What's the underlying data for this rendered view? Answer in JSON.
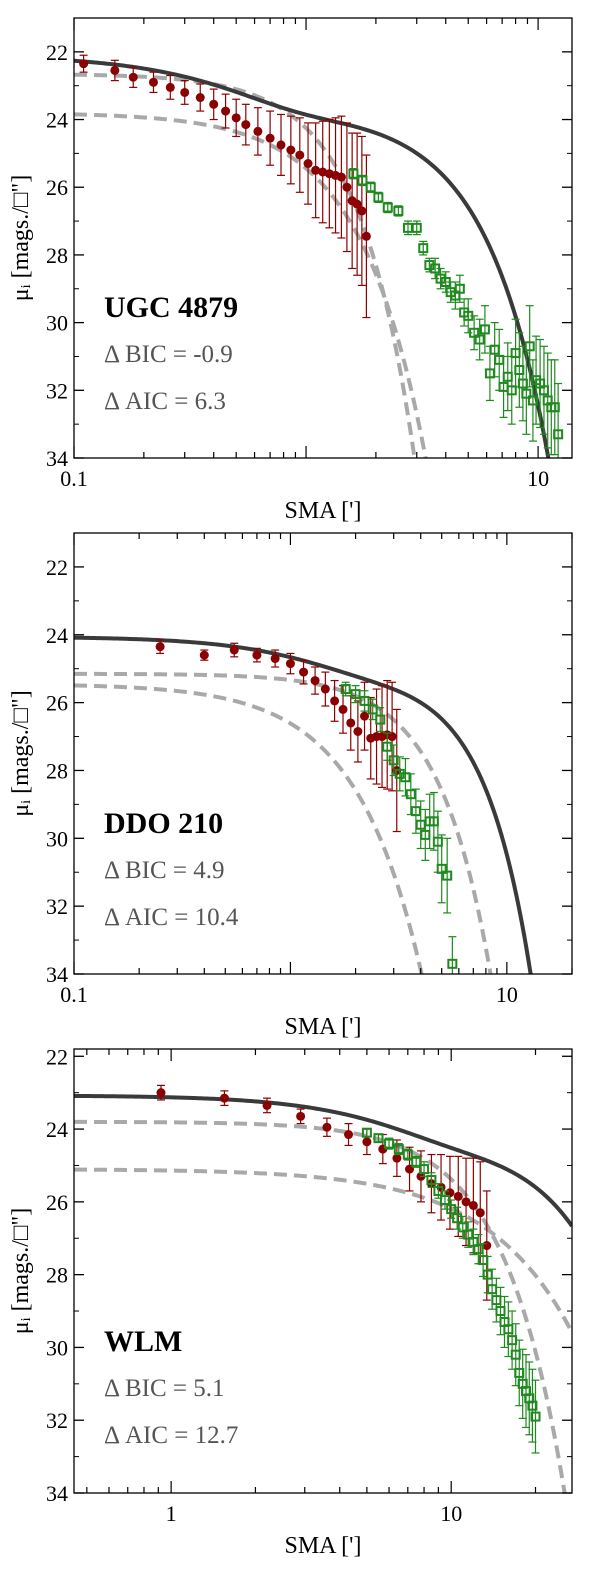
{
  "chart_data": [
    {
      "type": "scatter",
      "panel": "UGC 4879",
      "label": "UGC 4879",
      "stats": [
        "Δ BIC = -0.9",
        "Δ AIC = 6.3"
      ],
      "xlabel": "SMA [']",
      "ylabel": "μᵢ [mags./□\"]",
      "x_scale": "log",
      "xlim": [
        0.1,
        14
      ],
      "ylim": [
        34,
        21
      ],
      "yticks": [
        22,
        24,
        26,
        28,
        30,
        32,
        34
      ],
      "xtick_labels": [
        {
          "value": 0.1,
          "label": "0.1"
        },
        {
          "value": 10,
          "label": "10"
        }
      ],
      "model_params": {
        "total": {
          "mu0": 22.35,
          "re": 0.42,
          "n": 0.8,
          "re2": 2.6,
          "n2": 0.62,
          "mu02": 23.75
        },
        "comp_dash": [
          {
            "mu0": 22.65,
            "re": 0.7,
            "n": 0.55
          },
          {
            "mu0": 23.8,
            "re": 0.75,
            "n": 0.65
          }
        ]
      },
      "series": [
        {
          "name": "",
          "color": "#8b0000",
          "marker": "circle",
          "x": [
            0.11,
            0.15,
            0.18,
            0.22,
            0.26,
            0.3,
            0.35,
            0.4,
            0.45,
            0.5,
            0.55,
            0.62,
            0.7,
            0.78,
            0.86,
            0.94,
            1.02,
            1.1,
            1.18,
            1.26,
            1.34,
            1.42,
            1.5,
            1.58,
            1.66,
            1.74,
            1.82
          ],
          "y": [
            22.35,
            22.55,
            22.75,
            22.9,
            23.05,
            23.2,
            23.35,
            23.55,
            23.75,
            23.95,
            24.15,
            24.35,
            24.55,
            24.75,
            24.9,
            25.05,
            25.3,
            25.5,
            25.55,
            25.6,
            25.65,
            25.7,
            26.0,
            26.4,
            26.5,
            26.7,
            27.45
          ],
          "err": [
            0.25,
            0.3,
            0.3,
            0.3,
            0.35,
            0.35,
            0.4,
            0.45,
            0.5,
            0.55,
            0.6,
            0.7,
            0.8,
            0.9,
            1.0,
            1.1,
            1.2,
            1.4,
            1.5,
            1.6,
            1.7,
            1.8,
            1.9,
            2.0,
            2.1,
            2.2,
            2.4
          ]
        },
        {
          "name": "",
          "color": "#1e8a1e",
          "marker": "square",
          "x": [
            1.6,
            1.75,
            1.9,
            2.05,
            2.25,
            2.5,
            2.75,
            3.0,
            3.2,
            3.4,
            3.6,
            3.8,
            4.0,
            4.2,
            4.4,
            4.6,
            4.8,
            5.0,
            5.3,
            5.6,
            5.9,
            6.2,
            6.5,
            6.8,
            7.1,
            7.4,
            7.7,
            8.0,
            8.3,
            8.6,
            8.9,
            9.2,
            9.5,
            9.8,
            10.2,
            10.6,
            11.0,
            11.4,
            11.8,
            12.2
          ],
          "y": [
            25.6,
            25.8,
            26.0,
            26.3,
            26.6,
            26.7,
            27.2,
            27.2,
            27.8,
            28.3,
            28.4,
            28.7,
            28.8,
            29.1,
            29.2,
            29.0,
            29.7,
            29.8,
            30.3,
            30.5,
            30.2,
            31.5,
            30.8,
            31.1,
            31.9,
            31.6,
            32.0,
            30.9,
            31.4,
            31.8,
            32.1,
            30.7,
            32.3,
            31.7,
            31.8,
            32.0,
            32.3,
            32.5,
            32.5,
            33.3
          ],
          "err": [
            0.15,
            0.15,
            0.15,
            0.15,
            0.15,
            0.15,
            0.2,
            0.2,
            0.2,
            0.2,
            0.3,
            0.3,
            0.3,
            0.3,
            0.4,
            0.4,
            0.4,
            0.5,
            0.5,
            0.6,
            0.7,
            0.8,
            0.8,
            0.9,
            0.9,
            1.0,
            1.0,
            1.0,
            1.1,
            1.1,
            1.2,
            1.2,
            1.2,
            1.3,
            1.3,
            1.3,
            1.4,
            1.4,
            1.4,
            1.5
          ]
        }
      ]
    },
    {
      "type": "scatter",
      "panel": "DDO 210",
      "label": "DDO 210",
      "stats": [
        "Δ BIC = 4.9",
        "Δ AIC = 10.4"
      ],
      "xlabel": "SMA [']",
      "ylabel": "μᵢ [mags./□\"]",
      "x_scale": "log",
      "xlim": [
        0.1,
        20
      ],
      "ylim": [
        34,
        21
      ],
      "yticks": [
        22,
        24,
        26,
        28,
        30,
        32,
        34
      ],
      "xtick_labels": [
        {
          "value": 0.1,
          "label": "0.1"
        },
        {
          "value": 10,
          "label": "10"
        }
      ],
      "model_params": {
        "total": {
          "mu0": 24.55,
          "re": 1.05,
          "n": 0.72,
          "re2": 3.7,
          "n2": 0.5,
          "mu02": 25.15
        },
        "comp_dash": [
          {
            "mu0": 25.15,
            "re": 2.3,
            "n": 0.55
          },
          {
            "mu0": 25.45,
            "re": 1.0,
            "n": 0.7
          }
        ]
      },
      "series": [
        {
          "name": "",
          "color": "#8b0000",
          "marker": "circle",
          "x": [
            0.25,
            0.4,
            0.55,
            0.7,
            0.85,
            1.0,
            1.15,
            1.3,
            1.45,
            1.6,
            1.75,
            1.9,
            2.05,
            2.2,
            2.35,
            2.5,
            2.65,
            2.8,
            2.95,
            3.1
          ],
          "y": [
            24.35,
            24.6,
            24.45,
            24.6,
            24.7,
            24.85,
            25.1,
            25.35,
            25.6,
            25.95,
            26.2,
            26.6,
            26.85,
            26.4,
            27.05,
            27.0,
            27.0,
            26.95,
            27.0,
            28.0
          ],
          "err": [
            0.2,
            0.15,
            0.2,
            0.2,
            0.25,
            0.3,
            0.35,
            0.4,
            0.5,
            0.6,
            0.7,
            0.8,
            0.9,
            1.0,
            1.2,
            1.4,
            1.5,
            1.6,
            1.6,
            1.8
          ]
        },
        {
          "name": "",
          "color": "#1e8a1e",
          "marker": "square",
          "x": [
            1.8,
            2.0,
            2.2,
            2.4,
            2.6,
            2.8,
            3.0,
            3.2,
            3.4,
            3.6,
            3.8,
            4.0,
            4.2,
            4.4,
            4.6,
            4.8,
            5.0,
            5.3,
            5.6
          ],
          "y": [
            25.6,
            25.75,
            25.95,
            26.2,
            26.5,
            27.3,
            27.7,
            28.1,
            28.2,
            28.7,
            29.2,
            29.6,
            29.9,
            29.5,
            29.5,
            30.1,
            30.9,
            31.1,
            33.7
          ],
          "err": [
            0.2,
            0.25,
            0.3,
            0.3,
            0.35,
            0.4,
            0.45,
            0.5,
            0.55,
            0.6,
            0.65,
            0.7,
            0.75,
            0.8,
            0.85,
            0.9,
            1.0,
            1.1,
            0.8
          ]
        }
      ]
    },
    {
      "type": "scatter",
      "panel": "WLM",
      "label": "WLM",
      "stats": [
        "Δ BIC = 5.1",
        "Δ AIC = 12.7"
      ],
      "xlabel": "SMA [']",
      "ylabel": "μᵢ [mags./□\"]",
      "x_scale": "log",
      "xlim": [
        0.45,
        27
      ],
      "ylim": [
        34,
        21.8
      ],
      "yticks": [
        22,
        24,
        26,
        28,
        30,
        32,
        34
      ],
      "xtick_labels": [
        {
          "value": 1,
          "label": "1"
        },
        {
          "value": 10,
          "label": "10"
        }
      ],
      "model_params": {
        "total": {
          "mu0": 23.5,
          "re": 4.5,
          "n": 0.6,
          "re2": 15,
          "n2": 0.5,
          "mu02": 24.3
        },
        "comp_dash": [
          {
            "mu0": 23.8,
            "re": 6.8,
            "n": 0.5
          },
          {
            "mu0": 25.1,
            "re": 10.5,
            "n": 0.7
          }
        ]
      },
      "series": [
        {
          "name": "",
          "color": "#8b0000",
          "marker": "circle",
          "x": [
            0.92,
            1.55,
            2.2,
            2.9,
            3.6,
            4.3,
            5.0,
            5.7,
            6.4,
            7.1,
            7.8,
            8.5,
            9.2,
            9.9,
            10.6,
            11.3,
            12.0,
            12.7,
            13.4
          ],
          "y": [
            23.0,
            23.15,
            23.35,
            23.65,
            23.95,
            24.15,
            24.35,
            24.55,
            24.8,
            25.1,
            25.3,
            25.5,
            25.6,
            25.75,
            25.85,
            26.0,
            26.1,
            26.3,
            27.2
          ],
          "err": [
            0.2,
            0.2,
            0.2,
            0.2,
            0.25,
            0.3,
            0.35,
            0.4,
            0.5,
            0.6,
            0.7,
            0.8,
            0.9,
            1.0,
            1.1,
            1.2,
            1.3,
            1.4,
            1.5
          ]
        },
        {
          "name": "",
          "color": "#1e8a1e",
          "marker": "square",
          "x": [
            5.0,
            5.5,
            6.0,
            6.5,
            7.0,
            7.5,
            8.0,
            8.5,
            9.0,
            9.5,
            10.0,
            10.5,
            11.0,
            11.5,
            12.0,
            12.5,
            13.0,
            13.5,
            14.0,
            14.5,
            15.0,
            15.5,
            16.0,
            16.5,
            17.0,
            17.5,
            18.0,
            18.5,
            19.0,
            19.5,
            20.0
          ],
          "y": [
            24.1,
            24.25,
            24.4,
            24.55,
            24.7,
            24.9,
            25.1,
            25.4,
            25.7,
            25.95,
            26.2,
            26.45,
            26.7,
            26.9,
            27.1,
            27.3,
            27.6,
            28.0,
            28.4,
            28.7,
            29.0,
            29.3,
            29.5,
            29.8,
            30.2,
            30.7,
            31.0,
            31.2,
            31.4,
            31.6,
            31.9
          ],
          "err": [
            0.1,
            0.1,
            0.15,
            0.15,
            0.15,
            0.15,
            0.2,
            0.2,
            0.2,
            0.25,
            0.25,
            0.3,
            0.3,
            0.35,
            0.35,
            0.4,
            0.45,
            0.5,
            0.55,
            0.6,
            0.65,
            0.7,
            0.75,
            0.8,
            0.85,
            0.9,
            0.95,
            1.0,
            1.0,
            1.0,
            1.0
          ]
        }
      ]
    }
  ]
}
